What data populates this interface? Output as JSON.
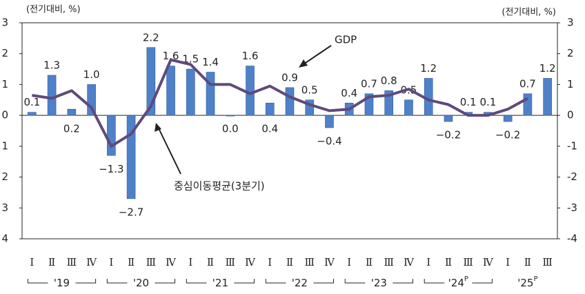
{
  "chart_data": {
    "type": "bar-line",
    "y_label": "(전기대비, %)",
    "y2_label": "(전기대비, %)",
    "categories": [
      "Ⅰ",
      "Ⅱ",
      "Ⅲ",
      "Ⅳ",
      "Ⅰ",
      "Ⅱ",
      "Ⅲ",
      "Ⅳ",
      "Ⅰ",
      "Ⅱ",
      "Ⅲ",
      "Ⅳ",
      "Ⅰ",
      "Ⅱ",
      "Ⅲ",
      "Ⅳ",
      "Ⅰ",
      "Ⅱ",
      "Ⅲ",
      "Ⅳ",
      "Ⅰ",
      "Ⅱ",
      "Ⅲ",
      "Ⅳ",
      "Ⅰ",
      "Ⅱ",
      "Ⅲ"
    ],
    "years": [
      {
        "text": "'19"
      },
      {
        "text": "'20"
      },
      {
        "text": "'21"
      },
      {
        "text": "'22"
      },
      {
        "text": "'23"
      },
      {
        "text": "'24",
        "sup": "P"
      },
      {
        "text": "'25",
        "sup": "P"
      }
    ],
    "series": [
      {
        "name": "GDP",
        "type": "bar",
        "color": "#4f81c9",
        "values": [
          0.1,
          1.3,
          0.2,
          1.0,
          -1.3,
          -2.7,
          2.2,
          1.6,
          1.5,
          1.4,
          0.0,
          1.6,
          0.4,
          0.9,
          0.5,
          -0.4,
          0.4,
          0.7,
          0.8,
          0.5,
          1.2,
          -0.2,
          0.1,
          0.1,
          -0.2,
          0.7,
          1.2
        ],
        "value_labels": [
          "0.1",
          "1.3",
          "0.2",
          "1.0",
          "−1.3",
          "−2.7",
          "2.2",
          "1.6",
          "1.5",
          "1.4",
          "0.0",
          "1.6",
          "0.4",
          "0.9",
          "0.5",
          "−0.4",
          "0.4",
          "0.7",
          "0.8",
          "0.5",
          "1.2",
          "−0.2",
          "0.1",
          "0.1",
          "−0.2",
          "0.7",
          "1.2"
        ]
      },
      {
        "name": "중심이동평균(3분기)",
        "type": "line",
        "color": "#5e4a7c",
        "values": [
          0.65,
          0.55,
          0.8,
          0.25,
          -1.0,
          -0.6,
          0.3,
          1.8,
          1.65,
          1.0,
          1.0,
          0.7,
          0.95,
          0.6,
          0.35,
          0.15,
          0.2,
          0.6,
          0.65,
          0.85,
          0.5,
          0.35,
          0.0,
          0.0,
          0.2,
          0.55,
          null
        ]
      }
    ],
    "ylim": [
      -4,
      3
    ],
    "yticks": [
      {
        "value": 3,
        "label": "3"
      },
      {
        "value": 2,
        "label": "2"
      },
      {
        "value": 1,
        "label": "1"
      },
      0,
      {
        "value": -1,
        "label": "1"
      },
      {
        "value": -2,
        "label": "2"
      },
      {
        "value": -3,
        "label": "3"
      },
      {
        "value": -4,
        "label": "4"
      }
    ],
    "y2lim": [
      -4,
      3
    ],
    "y2ticks": [
      3,
      2,
      1,
      0,
      -1,
      -2,
      -3,
      -4
    ]
  }
}
